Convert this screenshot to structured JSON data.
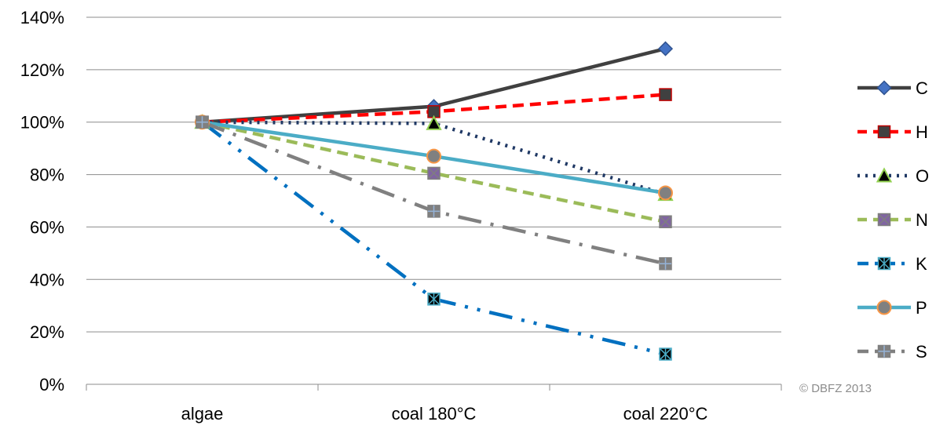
{
  "chart_data": {
    "type": "line",
    "title": "",
    "xlabel": "",
    "ylabel": "",
    "categories": [
      "algae",
      "coal 180°C",
      "coal 220°C"
    ],
    "ylim": [
      0,
      140
    ],
    "yticks": [
      0,
      20,
      40,
      60,
      80,
      100,
      120,
      140
    ],
    "ytick_labels": [
      "0%",
      "20%",
      "40%",
      "60%",
      "80%",
      "100%",
      "120%",
      "140%"
    ],
    "grid": "horizontal",
    "legend": "right",
    "series": [
      {
        "name": "C",
        "values": [
          100,
          106,
          128
        ],
        "color": "#404040",
        "dash": "solid",
        "marker": "diamond",
        "marker_fill": "#4472c4",
        "marker_stroke": "#2f528f"
      },
      {
        "name": "H",
        "values": [
          100,
          104,
          110.5
        ],
        "color": "#ff0000",
        "dash": "dash",
        "marker": "square",
        "marker_fill": "#404040",
        "marker_stroke": "#c00000"
      },
      {
        "name": "O",
        "values": [
          100,
          99.5,
          72.5
        ],
        "color": "#1f3864",
        "dash": "dot",
        "marker": "triangle",
        "marker_fill": "#000000",
        "marker_stroke": "#92d050"
      },
      {
        "name": "N",
        "values": [
          100,
          80.5,
          62
        ],
        "color": "#9bbb59",
        "dash": "dash",
        "marker": "square-x",
        "marker_fill": "#8064a2",
        "marker_stroke": "#7f7f7f"
      },
      {
        "name": "K",
        "values": [
          100,
          32.5,
          11.5
        ],
        "color": "#0070c0",
        "dash": "longdash-dot-dot",
        "marker": "square-star",
        "marker_fill": "#000000",
        "marker_stroke": "#4bacc6"
      },
      {
        "name": "P",
        "values": [
          100,
          87,
          73
        ],
        "color": "#4bacc6",
        "dash": "solid",
        "marker": "circle",
        "marker_fill": "#808080",
        "marker_stroke": "#f79646"
      },
      {
        "name": "S",
        "values": [
          100,
          66,
          46
        ],
        "color": "#808080",
        "dash": "longdash-dot",
        "marker": "square-plus",
        "marker_fill": "#808080",
        "marker_stroke": "#95b3d7"
      }
    ]
  },
  "copyright": "© DBFZ 2013"
}
